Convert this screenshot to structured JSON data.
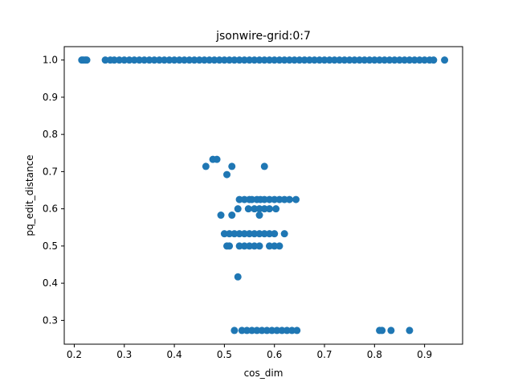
{
  "chart_data": {
    "type": "scatter",
    "title": "jsonwire-grid:0:7",
    "xlabel": "cos_dim",
    "ylabel": "pq_edit_distance",
    "xlim": [
      0.18,
      0.976
    ],
    "ylim": [
      0.236,
      1.036
    ],
    "xticks": [
      0.2,
      0.3,
      0.4,
      0.5,
      0.6,
      0.7,
      0.8,
      0.9
    ],
    "xtick_labels": [
      "0.2",
      "0.3",
      "0.4",
      "0.5",
      "0.6",
      "0.7",
      "0.8",
      "0.9"
    ],
    "yticks": [
      0.3,
      0.4,
      0.5,
      0.6,
      0.7,
      0.8,
      0.9,
      1.0
    ],
    "ytick_labels": [
      "0.3",
      "0.4",
      "0.5",
      "0.6",
      "0.7",
      "0.8",
      "0.9",
      "1.0"
    ],
    "grid": false,
    "legend": null,
    "marker_color": "#1f77b4",
    "series": [
      {
        "points": [
          [
            0.215,
            1.0
          ],
          [
            0.218,
            1.0
          ],
          [
            0.222,
            1.0
          ],
          [
            0.225,
            1.0
          ],
          [
            0.262,
            1.0
          ],
          [
            0.272,
            1.0
          ],
          [
            0.28,
            1.0
          ],
          [
            0.29,
            1.0
          ],
          [
            0.3,
            1.0
          ],
          [
            0.31,
            1.0
          ],
          [
            0.32,
            1.0
          ],
          [
            0.33,
            1.0
          ],
          [
            0.34,
            1.0
          ],
          [
            0.35,
            1.0
          ],
          [
            0.36,
            1.0
          ],
          [
            0.37,
            1.0
          ],
          [
            0.38,
            1.0
          ],
          [
            0.39,
            1.0
          ],
          [
            0.4,
            1.0
          ],
          [
            0.41,
            1.0
          ],
          [
            0.42,
            1.0
          ],
          [
            0.43,
            1.0
          ],
          [
            0.44,
            1.0
          ],
          [
            0.45,
            1.0
          ],
          [
            0.46,
            1.0
          ],
          [
            0.47,
            1.0
          ],
          [
            0.48,
            1.0
          ],
          [
            0.49,
            1.0
          ],
          [
            0.5,
            1.0
          ],
          [
            0.51,
            1.0
          ],
          [
            0.52,
            1.0
          ],
          [
            0.53,
            1.0
          ],
          [
            0.54,
            1.0
          ],
          [
            0.55,
            1.0
          ],
          [
            0.56,
            1.0
          ],
          [
            0.57,
            1.0
          ],
          [
            0.58,
            1.0
          ],
          [
            0.59,
            1.0
          ],
          [
            0.6,
            1.0
          ],
          [
            0.61,
            1.0
          ],
          [
            0.62,
            1.0
          ],
          [
            0.63,
            1.0
          ],
          [
            0.64,
            1.0
          ],
          [
            0.65,
            1.0
          ],
          [
            0.66,
            1.0
          ],
          [
            0.67,
            1.0
          ],
          [
            0.68,
            1.0
          ],
          [
            0.69,
            1.0
          ],
          [
            0.7,
            1.0
          ],
          [
            0.71,
            1.0
          ],
          [
            0.72,
            1.0
          ],
          [
            0.73,
            1.0
          ],
          [
            0.74,
            1.0
          ],
          [
            0.75,
            1.0
          ],
          [
            0.76,
            1.0
          ],
          [
            0.77,
            1.0
          ],
          [
            0.78,
            1.0
          ],
          [
            0.79,
            1.0
          ],
          [
            0.8,
            1.0
          ],
          [
            0.81,
            1.0
          ],
          [
            0.82,
            1.0
          ],
          [
            0.83,
            1.0
          ],
          [
            0.84,
            1.0
          ],
          [
            0.85,
            1.0
          ],
          [
            0.86,
            1.0
          ],
          [
            0.87,
            1.0
          ],
          [
            0.88,
            1.0
          ],
          [
            0.89,
            1.0
          ],
          [
            0.9,
            1.0
          ],
          [
            0.91,
            1.0
          ],
          [
            0.918,
            1.0
          ],
          [
            0.94,
            1.0
          ],
          [
            0.463,
            0.714
          ],
          [
            0.477,
            0.733
          ],
          [
            0.485,
            0.733
          ],
          [
            0.505,
            0.692
          ],
          [
            0.515,
            0.714
          ],
          [
            0.58,
            0.714
          ],
          [
            0.53,
            0.625
          ],
          [
            0.54,
            0.625
          ],
          [
            0.55,
            0.625
          ],
          [
            0.555,
            0.625
          ],
          [
            0.565,
            0.625
          ],
          [
            0.572,
            0.625
          ],
          [
            0.58,
            0.625
          ],
          [
            0.59,
            0.625
          ],
          [
            0.6,
            0.625
          ],
          [
            0.61,
            0.625
          ],
          [
            0.62,
            0.625
          ],
          [
            0.63,
            0.625
          ],
          [
            0.643,
            0.625
          ],
          [
            0.527,
            0.6
          ],
          [
            0.548,
            0.6
          ],
          [
            0.56,
            0.6
          ],
          [
            0.57,
            0.6
          ],
          [
            0.58,
            0.6
          ],
          [
            0.59,
            0.6
          ],
          [
            0.603,
            0.6
          ],
          [
            0.493,
            0.583
          ],
          [
            0.515,
            0.583
          ],
          [
            0.57,
            0.583
          ],
          [
            0.5,
            0.533
          ],
          [
            0.51,
            0.533
          ],
          [
            0.52,
            0.533
          ],
          [
            0.53,
            0.533
          ],
          [
            0.54,
            0.533
          ],
          [
            0.55,
            0.533
          ],
          [
            0.56,
            0.533
          ],
          [
            0.57,
            0.533
          ],
          [
            0.58,
            0.533
          ],
          [
            0.59,
            0.533
          ],
          [
            0.6,
            0.533
          ],
          [
            0.62,
            0.533
          ],
          [
            0.505,
            0.5
          ],
          [
            0.51,
            0.5
          ],
          [
            0.53,
            0.5
          ],
          [
            0.54,
            0.5
          ],
          [
            0.55,
            0.5
          ],
          [
            0.56,
            0.5
          ],
          [
            0.57,
            0.5
          ],
          [
            0.59,
            0.5
          ],
          [
            0.6,
            0.5
          ],
          [
            0.61,
            0.5
          ],
          [
            0.527,
            0.417
          ],
          [
            0.52,
            0.273
          ],
          [
            0.535,
            0.273
          ],
          [
            0.545,
            0.273
          ],
          [
            0.555,
            0.273
          ],
          [
            0.565,
            0.273
          ],
          [
            0.575,
            0.273
          ],
          [
            0.585,
            0.273
          ],
          [
            0.595,
            0.273
          ],
          [
            0.605,
            0.273
          ],
          [
            0.615,
            0.273
          ],
          [
            0.625,
            0.273
          ],
          [
            0.635,
            0.273
          ],
          [
            0.645,
            0.273
          ],
          [
            0.81,
            0.273
          ],
          [
            0.815,
            0.273
          ],
          [
            0.833,
            0.273
          ],
          [
            0.87,
            0.273
          ]
        ]
      }
    ]
  }
}
